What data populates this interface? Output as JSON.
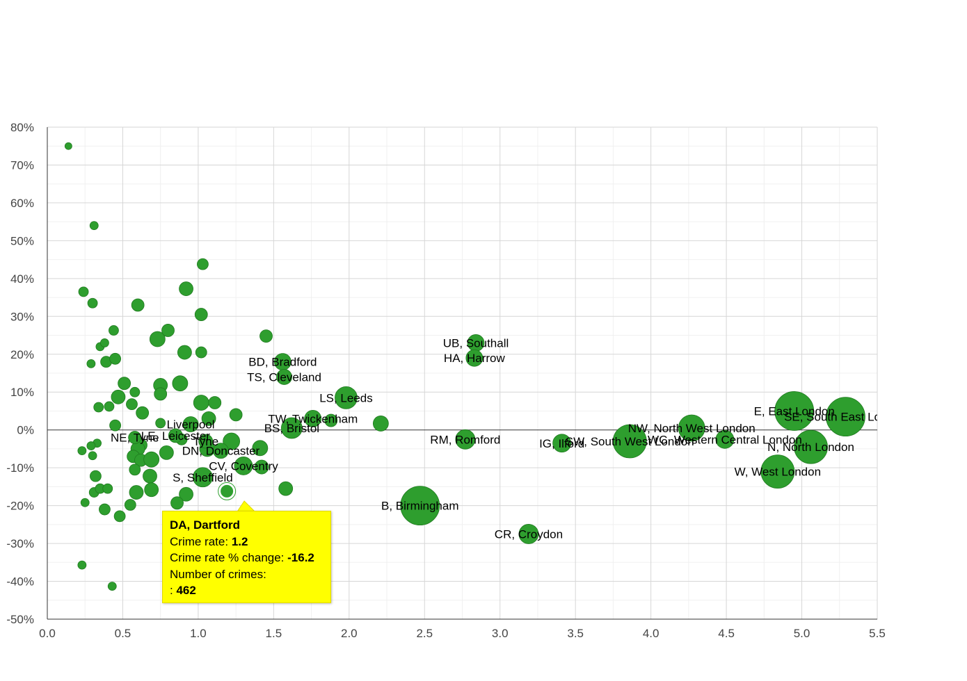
{
  "chart_data": {
    "type": "scatter",
    "title": "",
    "xlabel": "",
    "ylabel": "",
    "xlim": [
      0,
      5.5
    ],
    "ylim": [
      -50,
      80
    ],
    "x_ticks": [
      "0.0",
      "0.5",
      "1.0",
      "1.5",
      "2.0",
      "2.5",
      "3.0",
      "3.5",
      "4.0",
      "4.5",
      "5.0",
      "5.5"
    ],
    "y_ticks": [
      "80%",
      "70%",
      "60%",
      "50%",
      "40%",
      "30%",
      "20%",
      "10%",
      "0%",
      "-10%",
      "-20%",
      "-30%",
      "-40%",
      "-50%"
    ],
    "grid": true,
    "colors": {
      "point": "#2e9e2e",
      "point_stroke": "#1f7a1f",
      "tooltip_bg": "#ffff00"
    },
    "labeled_points": [
      {
        "label": "UB, Southall",
        "x": 2.84,
        "y": 23,
        "size": 12
      },
      {
        "label": "HA, Harrow",
        "x": 2.83,
        "y": 19,
        "size": 12
      },
      {
        "label": "BD, Bradford",
        "x": 1.56,
        "y": 18,
        "size": 12
      },
      {
        "label": "TS, Cleveland",
        "x": 1.57,
        "y": 14,
        "size": 11
      },
      {
        "label": "LS, Leeds",
        "x": 1.98,
        "y": 8.5,
        "size": 16
      },
      {
        "label": "TW, Twickenham",
        "x": 1.76,
        "y": 3,
        "size": 12
      },
      {
        "label": "BS, Bristol",
        "x": 1.62,
        "y": 0.5,
        "size": 15
      },
      {
        "label": "Liverpool",
        "x": 0.95,
        "y": 1.5,
        "size": 11
      },
      {
        "label": "LE, Leicester",
        "x": 0.85,
        "y": -1.5,
        "size": 10
      },
      {
        "label": "NE, Tyne",
        "x": 0.58,
        "y": -2,
        "size": 9
      },
      {
        "label": "Tyne",
        "x": 1.05,
        "y": -3,
        "size": 10
      },
      {
        "label": "DN, Doncaster",
        "x": 1.15,
        "y": -5.5,
        "size": 11
      },
      {
        "label": "CV, Coventry",
        "x": 1.3,
        "y": -9.5,
        "size": 13
      },
      {
        "label": "S, Sheffield",
        "x": 1.03,
        "y": -12.5,
        "size": 14
      },
      {
        "label": "DA, Dartford",
        "x": 1.19,
        "y": -16.2,
        "size": 10
      },
      {
        "label": "RM, Romford",
        "x": 2.77,
        "y": -2.5,
        "size": 14
      },
      {
        "label": "B, Birmingham",
        "x": 2.47,
        "y": -20,
        "size": 28
      },
      {
        "label": "CR, Croydon",
        "x": 3.19,
        "y": -27.5,
        "size": 14
      },
      {
        "label": "IG, Ilford",
        "x": 3.41,
        "y": -3.5,
        "size": 13
      },
      {
        "label": "SW, South West London",
        "x": 3.86,
        "y": -3,
        "size": 24
      },
      {
        "label": "NW, North West London",
        "x": 4.27,
        "y": 0.5,
        "size": 19
      },
      {
        "label": "WC, Western Central London",
        "x": 4.49,
        "y": -2.5,
        "size": 13
      },
      {
        "label": "E, East London",
        "x": 4.95,
        "y": 5,
        "size": 28
      },
      {
        "label": "SE, South East London",
        "x": 5.29,
        "y": 3.5,
        "size": 28
      },
      {
        "label": "N, North London",
        "x": 5.06,
        "y": -4.5,
        "size": 24
      },
      {
        "label": "W, West London",
        "x": 4.84,
        "y": -11,
        "size": 24
      }
    ],
    "unlabeled_points": [
      [
        0.14,
        75,
        5
      ],
      [
        0.31,
        54,
        6
      ],
      [
        0.24,
        36.5,
        7
      ],
      [
        0.3,
        33.5,
        7
      ],
      [
        0.35,
        22,
        6
      ],
      [
        0.38,
        23,
        6
      ],
      [
        0.29,
        17.5,
        6
      ],
      [
        0.39,
        18,
        8
      ],
      [
        0.45,
        18.8,
        8
      ],
      [
        0.44,
        26.3,
        7
      ],
      [
        0.6,
        33,
        9
      ],
      [
        0.73,
        24,
        11
      ],
      [
        0.8,
        26.3,
        9
      ],
      [
        0.92,
        37.3,
        10
      ],
      [
        1.03,
        43.8,
        8
      ],
      [
        1.02,
        30.5,
        9
      ],
      [
        1.02,
        20.5,
        8
      ],
      [
        0.91,
        20.5,
        10
      ],
      [
        1.45,
        24.8,
        9
      ],
      [
        0.51,
        12.3,
        9
      ],
      [
        0.58,
        10,
        7
      ],
      [
        0.75,
        11.8,
        10
      ],
      [
        0.75,
        9.5,
        9
      ],
      [
        0.88,
        12.3,
        11
      ],
      [
        0.47,
        8.7,
        10
      ],
      [
        0.56,
        6.8,
        8
      ],
      [
        0.34,
        6,
        7
      ],
      [
        0.41,
        6.2,
        7
      ],
      [
        0.63,
        4.5,
        9
      ],
      [
        1.02,
        7.2,
        11
      ],
      [
        1.11,
        7.2,
        9
      ],
      [
        1.25,
        4,
        9
      ],
      [
        0.45,
        1.2,
        8
      ],
      [
        0.75,
        1.8,
        7
      ],
      [
        1.07,
        3,
        10
      ],
      [
        0.33,
        -3.5,
        6
      ],
      [
        0.29,
        -4.2,
        6
      ],
      [
        0.23,
        -5.5,
        6
      ],
      [
        0.3,
        -6.8,
        6
      ],
      [
        0.57,
        -2,
        7
      ],
      [
        0.62,
        -4,
        9
      ],
      [
        0.6,
        -5,
        10
      ],
      [
        0.57,
        -7,
        9
      ],
      [
        0.62,
        -8,
        9
      ],
      [
        0.69,
        -7.8,
        11
      ],
      [
        0.79,
        -6,
        10
      ],
      [
        0.89,
        -2.5,
        8
      ],
      [
        1.06,
        -5,
        11
      ],
      [
        1.22,
        -3,
        12
      ],
      [
        1.41,
        -4.8,
        11
      ],
      [
        1.42,
        -9.8,
        10
      ],
      [
        0.58,
        -10.5,
        8
      ],
      [
        0.68,
        -12.2,
        10
      ],
      [
        0.32,
        -12.2,
        8
      ],
      [
        0.31,
        -16.5,
        7
      ],
      [
        0.35,
        -15.5,
        7
      ],
      [
        0.4,
        -15.5,
        7
      ],
      [
        0.59,
        -16.5,
        10
      ],
      [
        0.69,
        -15.8,
        10
      ],
      [
        0.92,
        -17,
        10
      ],
      [
        1.58,
        -15.5,
        10
      ],
      [
        0.25,
        -19.2,
        6
      ],
      [
        0.38,
        -21,
        8
      ],
      [
        0.55,
        -19.8,
        8
      ],
      [
        0.48,
        -22.8,
        8
      ],
      [
        0.86,
        -19.3,
        9
      ],
      [
        0.23,
        -35.7,
        6
      ],
      [
        0.43,
        -41.3,
        6
      ],
      [
        2.21,
        1.7,
        11
      ],
      [
        1.88,
        2.5,
        9
      ]
    ],
    "tooltip": {
      "title": "DA, Dartford",
      "rate_label": "Crime rate:",
      "rate_value": "1.2",
      "change_label": "Crime rate % change:",
      "change_value": "-16.2",
      "count_label": "Number of crimes:",
      "count_prefix": ":",
      "count_value": "462"
    }
  }
}
